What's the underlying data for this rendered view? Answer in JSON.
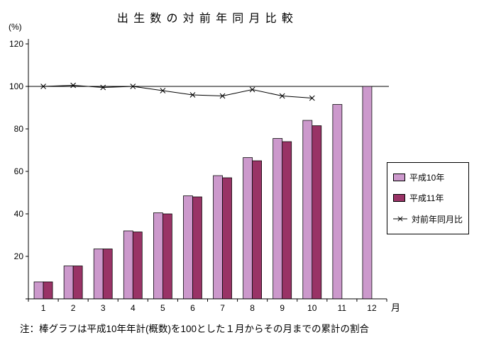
{
  "page": {
    "title": "出生数の対前年同月比較",
    "y_axis_unit": "(%)",
    "x_axis_unit": "月",
    "note": "注：棒グラフは平成10年年計(概数)を100とした１月からその月までの累計の割合"
  },
  "colors": {
    "h10_bar": "#cc99cc",
    "h11_bar": "#993366",
    "trend_line": "#000000",
    "axis": "#000000"
  },
  "chart_data": {
    "type": "bar",
    "title": "出生数の対前年同月比較",
    "categories": [
      1,
      2,
      3,
      4,
      5,
      6,
      7,
      8,
      9,
      10,
      11,
      12
    ],
    "series": [
      {
        "name": "平成10年",
        "type": "bar",
        "color": "#cc99cc",
        "values": [
          8,
          15.5,
          23.5,
          32,
          40.5,
          48.5,
          58,
          66.5,
          75.5,
          84,
          91.5,
          100
        ]
      },
      {
        "name": "平成11年",
        "type": "bar",
        "color": "#993366",
        "values": [
          8,
          15.5,
          23.5,
          31.5,
          40,
          48,
          57,
          65,
          74,
          81.5,
          null,
          null
        ]
      },
      {
        "name": "対前年同月比",
        "type": "line",
        "color": "#000000",
        "marker": "x",
        "values": [
          100,
          100.5,
          99.5,
          100,
          98,
          96,
          95.5,
          98.5,
          95.5,
          94.5,
          null,
          null
        ]
      }
    ],
    "xlabel": "月",
    "ylabel": "(%)",
    "ylim": [
      0,
      120
    ],
    "yticks": [
      20,
      40,
      60,
      80,
      100,
      120
    ],
    "reference_line": 100,
    "grid": false,
    "legend_position": "right"
  }
}
